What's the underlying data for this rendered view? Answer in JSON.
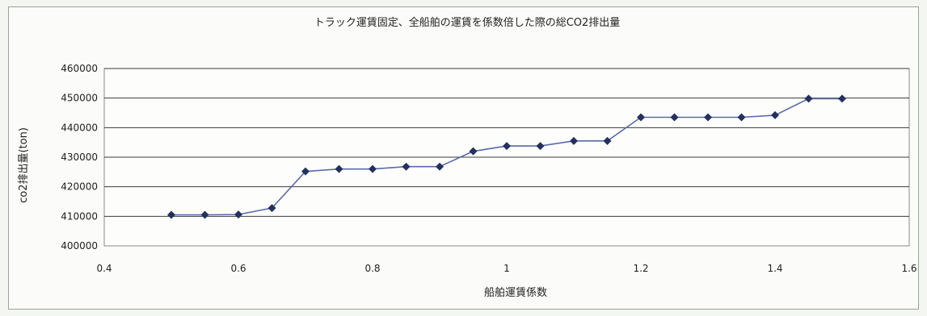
{
  "chart_data": {
    "type": "line",
    "title": "トラック運賃固定、全船舶の運賃を係数倍した際の総CO2排出量",
    "xlabel": "船舶運賃係数",
    "ylabel": "co2排出量(ton)",
    "xlim": [
      0.4,
      1.6
    ],
    "ylim": [
      400000,
      460000
    ],
    "xticks": [
      0.4,
      0.6,
      0.8,
      1,
      1.2,
      1.4,
      1.6
    ],
    "yticks": [
      400000,
      410000,
      420000,
      430000,
      440000,
      450000,
      460000
    ],
    "grid": "horizontal",
    "legend": "none",
    "line_color": "#5a6aa8",
    "marker_color": "#24305e",
    "series": [
      {
        "x": [
          0.5,
          0.55,
          0.6,
          0.65,
          0.7,
          0.75,
          0.8,
          0.85,
          0.9,
          0.95,
          1.0,
          1.05,
          1.1,
          1.15,
          1.2,
          1.25,
          1.3,
          1.35,
          1.4,
          1.45,
          1.5
        ],
        "values": [
          410500,
          410500,
          410600,
          412800,
          425200,
          426000,
          426000,
          426800,
          426800,
          432000,
          433800,
          433800,
          435500,
          435500,
          443500,
          443500,
          443500,
          443500,
          444200,
          449800,
          449800
        ]
      }
    ]
  }
}
